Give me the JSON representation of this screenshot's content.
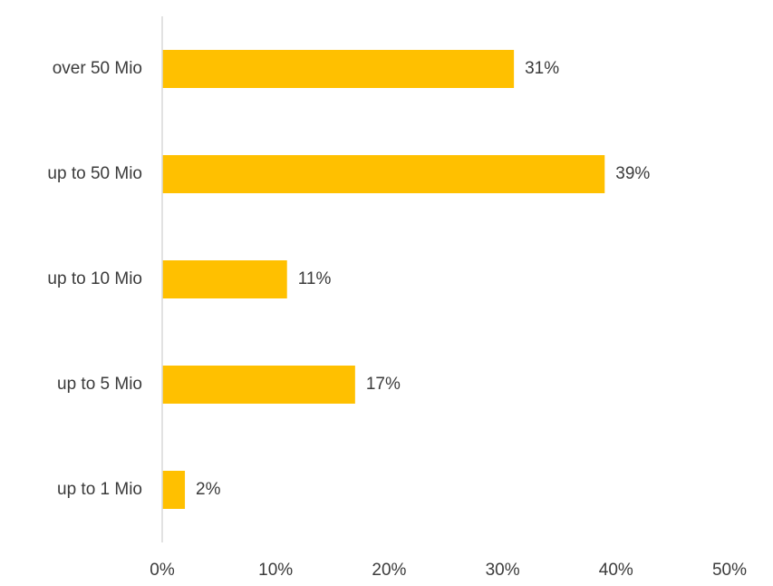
{
  "chart_data": {
    "type": "bar",
    "orientation": "horizontal",
    "title": "",
    "xlabel": "",
    "ylabel": "",
    "categories": [
      "over 50 Mio",
      "up to 50 Mio",
      "up to 10 Mio",
      "up to 5 Mio",
      "up to 1 Mio"
    ],
    "values": [
      31,
      39,
      11,
      17,
      2
    ],
    "value_labels": [
      "31%",
      "39%",
      "11%",
      "17%",
      "2%"
    ],
    "xlim": [
      0,
      50
    ],
    "x_ticks": [
      0,
      10,
      20,
      30,
      40,
      50
    ],
    "x_tick_labels": [
      "0%",
      "10%",
      "20%",
      "30%",
      "40%",
      "50%"
    ],
    "grid": false,
    "legend": "none",
    "bar_color": "#FFC000",
    "axis_color": "#D9D9D9",
    "text_color": "#3B3B3B"
  }
}
